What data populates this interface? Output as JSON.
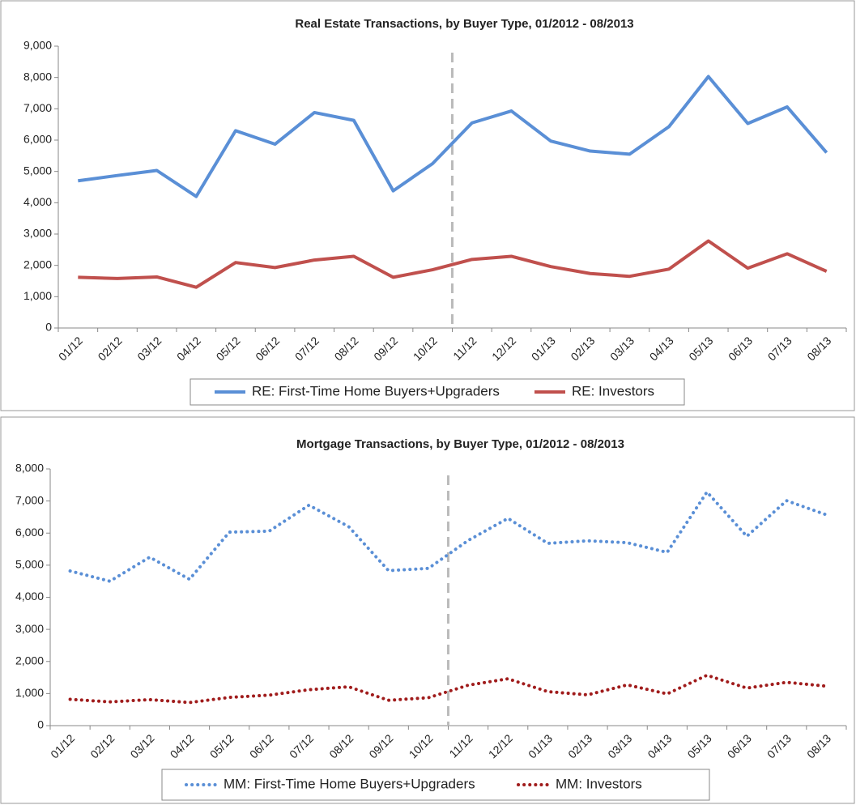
{
  "chart_data": [
    {
      "type": "line",
      "title": "Real Estate Transactions, by Buyer Type, 01/2012 - 08/2013",
      "categories": [
        "01/12",
        "02/12",
        "03/12",
        "04/12",
        "05/12",
        "06/12",
        "07/12",
        "08/12",
        "09/12",
        "10/12",
        "11/12",
        "12/12",
        "01/13",
        "02/13",
        "03/13",
        "04/13",
        "05/13",
        "06/13",
        "07/13",
        "08/13"
      ],
      "series": [
        {
          "name": "RE: First-Time Home Buyers+Upgraders",
          "color": "#5a8fd6",
          "line_style": "solid",
          "values": [
            4700,
            4870,
            5030,
            4200,
            6300,
            5870,
            6880,
            6630,
            4380,
            5250,
            6550,
            6930,
            5970,
            5650,
            5550,
            6430,
            8030,
            6530,
            7060,
            5600
          ]
        },
        {
          "name": "RE: Investors",
          "color": "#c0504d",
          "line_style": "solid",
          "values": [
            1620,
            1580,
            1630,
            1300,
            2090,
            1930,
            2170,
            2290,
            1620,
            1860,
            2190,
            2290,
            1960,
            1740,
            1650,
            1880,
            2780,
            1910,
            2370,
            1810
          ]
        }
      ],
      "ylim": [
        0,
        9000
      ],
      "yticks": [
        0,
        {
          "value": 1000,
          "label": "1,000"
        },
        {
          "value": 2000,
          "label": "2,000"
        },
        {
          "value": 3000,
          "label": "3,000"
        },
        {
          "value": 4000,
          "label": "4,000"
        },
        {
          "value": 5000,
          "label": "5,000"
        },
        {
          "value": 6000,
          "label": "6,000"
        },
        {
          "value": 7000,
          "label": "7,000"
        },
        {
          "value": 8000,
          "label": "8,000"
        },
        {
          "value": 9000,
          "label": "9,000"
        }
      ],
      "vline": "10/12",
      "legend": "bottom"
    },
    {
      "type": "line",
      "title": "Mortgage Transactions, by Buyer Type, 01/2012 - 08/2013",
      "categories": [
        "01/12",
        "02/12",
        "03/12",
        "04/12",
        "05/12",
        "06/12",
        "07/12",
        "08/12",
        "09/12",
        "10/12",
        "11/12",
        "12/12",
        "01/13",
        "02/13",
        "03/13",
        "04/13",
        "05/13",
        "06/13",
        "07/13",
        "08/13"
      ],
      "series": [
        {
          "name": "MM: First-Time Home Buyers+Upgraders",
          "color": "#5a8fd6",
          "line_style": "dotted",
          "values": [
            4820,
            4500,
            5250,
            4560,
            6030,
            6060,
            6870,
            6200,
            4830,
            4900,
            5770,
            6460,
            5680,
            5760,
            5700,
            5400,
            7280,
            5900,
            7010,
            6570
          ]
        },
        {
          "name": "MM: Investors",
          "color": "#a01c1c",
          "line_style": "dotted",
          "values": [
            820,
            740,
            810,
            720,
            880,
            950,
            1120,
            1210,
            790,
            870,
            1260,
            1460,
            1060,
            960,
            1270,
            990,
            1570,
            1170,
            1350,
            1230
          ]
        }
      ],
      "ylim": [
        0,
        8000
      ],
      "yticks": [
        0,
        {
          "value": 1000,
          "label": "1,000"
        },
        {
          "value": 2000,
          "label": "2,000"
        },
        {
          "value": 3000,
          "label": "3,000"
        },
        {
          "value": 4000,
          "label": "4,000"
        },
        {
          "value": 5000,
          "label": "5,000"
        },
        {
          "value": 6000,
          "label": "6,000"
        },
        {
          "value": 7000,
          "label": "7,000"
        },
        {
          "value": 8000,
          "label": "8,000"
        }
      ],
      "vline": "10/12",
      "legend": "bottom"
    }
  ]
}
